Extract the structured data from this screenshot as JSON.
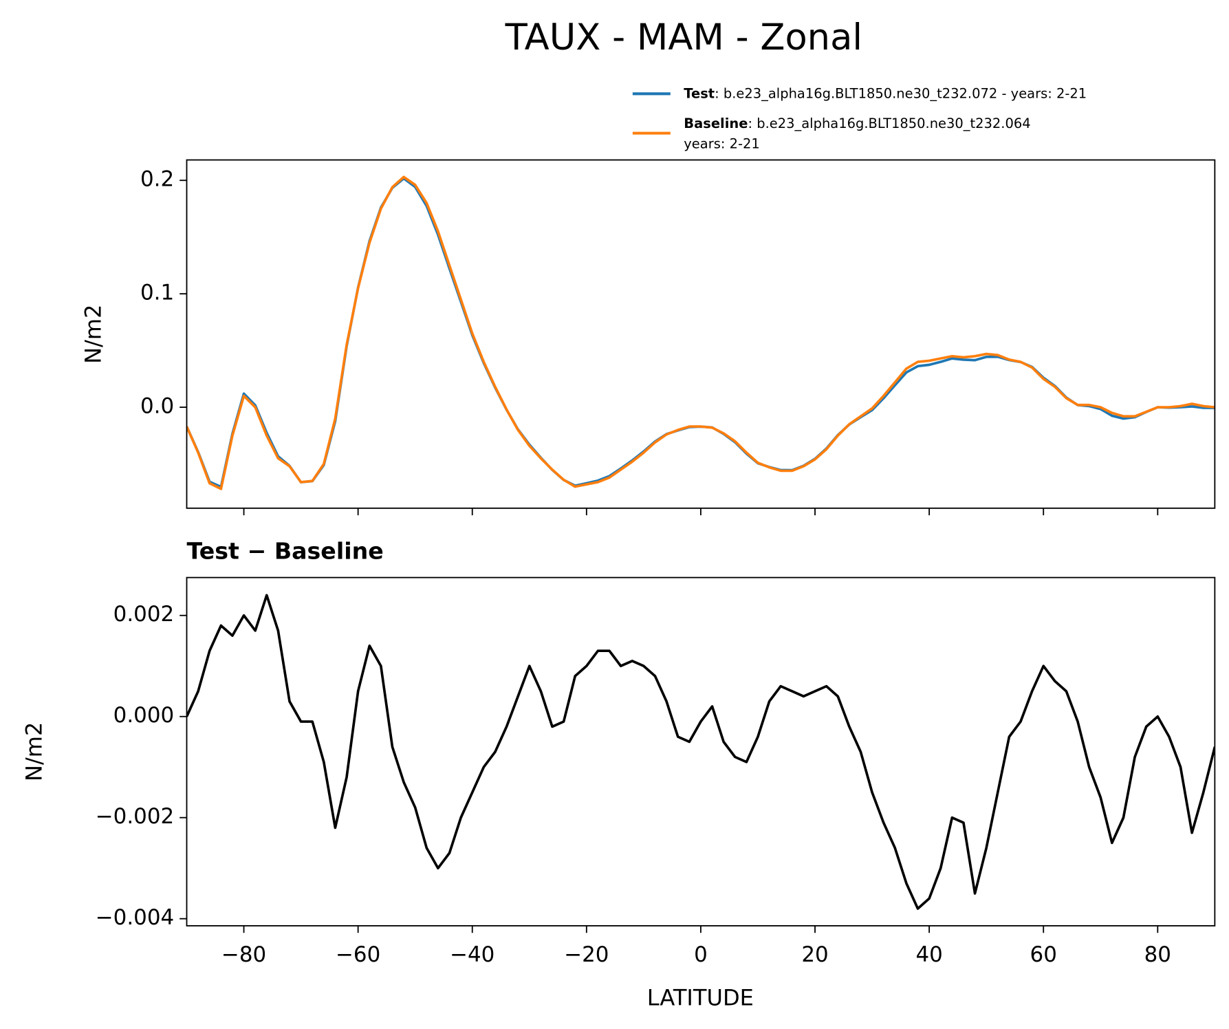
{
  "chart_data": [
    {
      "type": "line",
      "title": "TAUX - MAM - Zonal",
      "ylabel": "N/m2",
      "xlim": [
        -90,
        90
      ],
      "ylim": [
        -0.089,
        0.218
      ],
      "yticks": [
        {
          "value": 0.0,
          "label": "0.0"
        },
        0.1,
        0.2
      ],
      "x": [
        -90,
        -88,
        -86,
        -84,
        -82,
        -80,
        -78,
        -76,
        -74,
        -72,
        -70,
        -68,
        -66,
        -64,
        -62,
        -60,
        -58,
        -56,
        -54,
        -52,
        -50,
        -48,
        -46,
        -44,
        -42,
        -40,
        -38,
        -36,
        -34,
        -32,
        -30,
        -28,
        -26,
        -24,
        -22,
        -20,
        -18,
        -16,
        -14,
        -12,
        -10,
        -8,
        -6,
        -4,
        -2,
        0,
        2,
        4,
        6,
        8,
        10,
        12,
        14,
        16,
        18,
        20,
        22,
        24,
        26,
        28,
        30,
        32,
        34,
        36,
        38,
        40,
        42,
        44,
        46,
        48,
        50,
        52,
        54,
        56,
        58,
        60,
        62,
        64,
        66,
        68,
        70,
        72,
        74,
        76,
        78,
        80,
        82,
        84,
        86,
        88,
        90
      ],
      "series": [
        {
          "name": "Test",
          "label": [
            ": b.e23_alpha16g.BLT1850.ne30_t232.072 - years: 2-21"
          ],
          "color": "#1f77b4",
          "values": [
            -0.017,
            -0.0395,
            -0.0657,
            -0.0702,
            -0.0234,
            0.012,
            0.0017,
            -0.0226,
            -0.0433,
            -0.0517,
            -0.0661,
            -0.0651,
            -0.0509,
            -0.0122,
            0.0538,
            0.1055,
            0.1464,
            0.176,
            0.1934,
            0.2017,
            0.1942,
            0.1774,
            0.152,
            0.1223,
            0.093,
            0.0635,
            0.039,
            0.0173,
            -0.0022,
            -0.0196,
            -0.033,
            -0.0445,
            -0.0552,
            -0.0641,
            -0.0692,
            -0.067,
            -0.0647,
            -0.0607,
            -0.054,
            -0.0469,
            -0.039,
            -0.0302,
            -0.0237,
            -0.0204,
            -0.0175,
            -0.0171,
            -0.0178,
            -0.0235,
            -0.0308,
            -0.0409,
            -0.0494,
            -0.0527,
            -0.0554,
            -0.0555,
            -0.0516,
            -0.0455,
            -0.0364,
            -0.0246,
            -0.0152,
            -0.0087,
            -0.0025,
            0.0079,
            0.0194,
            0.0307,
            0.0362,
            0.0374,
            0.04,
            0.043,
            0.0419,
            0.0415,
            0.0444,
            0.0445,
            0.0416,
            0.0399,
            0.0355,
            0.026,
            0.0187,
            0.0085,
            0.0019,
            0.001,
            -0.0016,
            -0.0075,
            -0.01,
            -0.0088,
            -0.0042,
            0.0,
            -0.0004,
            0.0,
            0.0007,
            -0.0005,
            -0.0006
          ]
        },
        {
          "name": "Baseline",
          "label": [
            ": b.e23_alpha16g.BLT1850.ne30_t232.064",
            "years: 2-21"
          ],
          "color": "#ff7f0e",
          "values": [
            -0.017,
            -0.04,
            -0.067,
            -0.072,
            -0.025,
            0.01,
            0.0,
            -0.025,
            -0.045,
            -0.052,
            -0.066,
            -0.065,
            -0.05,
            -0.01,
            0.055,
            0.105,
            0.145,
            0.175,
            0.194,
            0.203,
            0.196,
            0.18,
            0.155,
            0.125,
            0.095,
            0.065,
            0.04,
            0.018,
            -0.002,
            -0.02,
            -0.034,
            -0.045,
            -0.055,
            -0.064,
            -0.07,
            -0.068,
            -0.066,
            -0.062,
            -0.055,
            -0.048,
            -0.04,
            -0.031,
            -0.024,
            -0.02,
            -0.017,
            -0.017,
            -0.018,
            -0.023,
            -0.03,
            -0.04,
            -0.049,
            -0.053,
            -0.056,
            -0.056,
            -0.052,
            -0.046,
            -0.037,
            -0.025,
            -0.015,
            -0.008,
            -0.001,
            0.01,
            0.022,
            0.034,
            0.04,
            0.041,
            0.043,
            0.045,
            0.044,
            0.045,
            0.047,
            0.046,
            0.042,
            0.04,
            0.035,
            0.025,
            0.018,
            0.008,
            0.002,
            0.002,
            0.0,
            -0.005,
            -0.008,
            -0.008,
            -0.004,
            0.0,
            0.0,
            0.001,
            0.003,
            0.001,
            0.0
          ]
        }
      ]
    },
    {
      "type": "line",
      "title": "Test − Baseline",
      "xlabel": "LATITUDE",
      "ylabel": "N/m2",
      "xlim": [
        -90,
        90
      ],
      "ylim": [
        -0.00414,
        0.00275
      ],
      "xticks": [
        {
          "value": -80,
          "label": "−80"
        },
        {
          "value": -60,
          "label": "−60"
        },
        {
          "value": -40,
          "label": "−40"
        },
        {
          "value": -20,
          "label": "−20"
        },
        0,
        20,
        40,
        60,
        80
      ],
      "yticks": [
        {
          "value": -0.004,
          "label": "−0.004"
        },
        {
          "value": -0.002,
          "label": "−0.002"
        },
        {
          "value": 0.0,
          "label": "0.000"
        },
        0.002
      ],
      "x": [
        -90,
        -88,
        -86,
        -84,
        -82,
        -80,
        -78,
        -76,
        -74,
        -72,
        -70,
        -68,
        -66,
        -64,
        -62,
        -60,
        -58,
        -56,
        -54,
        -52,
        -50,
        -48,
        -46,
        -44,
        -42,
        -40,
        -38,
        -36,
        -34,
        -32,
        -30,
        -28,
        -26,
        -24,
        -22,
        -20,
        -18,
        -16,
        -14,
        -12,
        -10,
        -8,
        -6,
        -4,
        -2,
        0,
        2,
        4,
        6,
        8,
        10,
        12,
        14,
        16,
        18,
        20,
        22,
        24,
        26,
        28,
        30,
        32,
        34,
        36,
        38,
        40,
        42,
        44,
        46,
        48,
        50,
        52,
        54,
        56,
        58,
        60,
        62,
        64,
        66,
        68,
        70,
        72,
        74,
        76,
        78,
        80,
        82,
        84,
        86,
        88,
        90
      ],
      "color": "#000000",
      "values": [
        0.0,
        0.0005,
        0.0013,
        0.0018,
        0.0016,
        0.002,
        0.0017,
        0.0024,
        0.0017,
        0.0003,
        -0.0001,
        -0.0001,
        -0.0009,
        -0.0022,
        -0.0012,
        0.0005,
        0.0014,
        0.001,
        -0.0006,
        -0.0013,
        -0.0018,
        -0.0026,
        -0.003,
        -0.0027,
        -0.002,
        -0.0015,
        -0.001,
        -0.0007,
        -0.0002,
        0.0004,
        0.001,
        0.0005,
        -0.0002,
        -0.0001,
        0.0008,
        0.001,
        0.0013,
        0.0013,
        0.001,
        0.0011,
        0.001,
        0.0008,
        0.0003,
        -0.0004,
        -0.0005,
        -0.0001,
        0.0002,
        -0.0005,
        -0.0008,
        -0.0009,
        -0.0004,
        0.0003,
        0.0006,
        0.0005,
        0.0004,
        0.0005,
        0.0006,
        0.0004,
        -0.0002,
        -0.0007,
        -0.0015,
        -0.0021,
        -0.0026,
        -0.0033,
        -0.0038,
        -0.0036,
        -0.003,
        -0.002,
        -0.0021,
        -0.0035,
        -0.0026,
        -0.0015,
        -0.0004,
        -0.0001,
        0.0005,
        0.001,
        0.0007,
        0.0005,
        -0.0001,
        -0.001,
        -0.0016,
        -0.0025,
        -0.002,
        -0.0008,
        -0.0002,
        0.0,
        -0.0004,
        -0.001,
        -0.0023,
        -0.0015,
        -0.0006
      ]
    }
  ]
}
